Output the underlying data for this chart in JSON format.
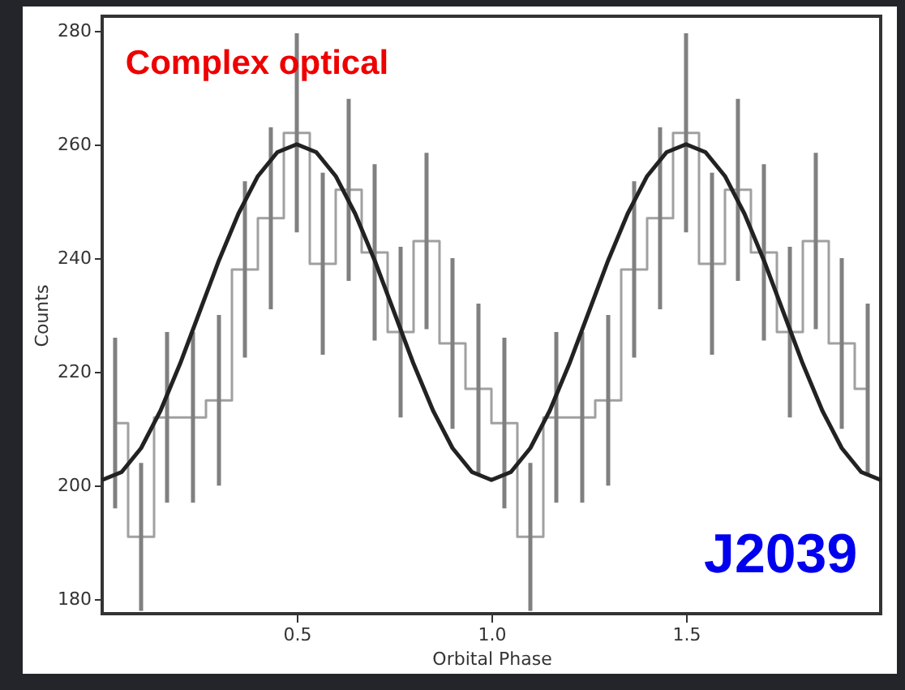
{
  "chart_data": {
    "type": "step",
    "xlabel": "Orbital Phase",
    "ylabel": "Counts",
    "annotations": [
      "Complex optical",
      "J2039"
    ],
    "xlim": [
      0,
      2
    ],
    "ylim": [
      177.5,
      282.5
    ],
    "xticks": [
      0.5,
      {
        "value": 1,
        "label": "1.0"
      },
      1.5
    ],
    "yticks": [
      180,
      200,
      220,
      240,
      260,
      280
    ],
    "grid": false,
    "series": [
      {
        "color": "#a0a0a0",
        "marker": "none",
        "x": [
          0.0333,
          0.1,
          0.1667,
          0.2333,
          0.3,
          0.3667,
          0.4333,
          0.5,
          0.5667,
          0.6333,
          0.7,
          0.7667,
          0.8333,
          0.9,
          0.9667,
          1.0333,
          1.1,
          1.1667,
          1.2333,
          1.3,
          1.3667,
          1.4333,
          1.5,
          1.5667,
          1.6333,
          1.7,
          1.7667,
          1.8333,
          1.9,
          1.9667
        ],
        "values": [
          211,
          191,
          212,
          212,
          215,
          238,
          247,
          262,
          239,
          252,
          241,
          227,
          243,
          225,
          217,
          211,
          191,
          212,
          212,
          215,
          238,
          247,
          262,
          239,
          252,
          241,
          227,
          243,
          225,
          217
        ],
        "errors": [
          15,
          13,
          15,
          15,
          15,
          15.5,
          16,
          17.5,
          16,
          16,
          15.5,
          15,
          15.5,
          15,
          15,
          15,
          13,
          15,
          15,
          15,
          15.5,
          16,
          17.5,
          16,
          16,
          15.5,
          15,
          15.5,
          15,
          15
        ]
      },
      {
        "type": "line",
        "color": "#222222",
        "line_style": "solid",
        "marker": "none",
        "x": [
          0,
          0.05,
          0.1,
          0.15,
          0.2,
          0.25,
          0.3,
          0.35,
          0.4,
          0.45,
          0.5,
          0.55,
          0.6,
          0.65,
          0.7,
          0.75,
          0.8,
          0.85,
          0.9,
          0.95,
          1,
          1.05,
          1.1,
          1.15,
          1.2,
          1.25,
          1.3,
          1.35,
          1.4,
          1.45,
          1.5,
          1.55,
          1.6,
          1.65,
          1.7,
          1.75,
          1.8,
          1.85,
          1.9,
          1.95,
          2
        ],
        "values": [
          201,
          202.4,
          206.6,
          213.2,
          221.4,
          230.5,
          239.6,
          247.8,
          254.4,
          258.6,
          260,
          258.6,
          254.4,
          247.8,
          239.6,
          230.5,
          221.4,
          213.2,
          206.6,
          202.4,
          201,
          202.4,
          206.6,
          213.2,
          221.4,
          230.5,
          239.6,
          247.8,
          254.4,
          258.6,
          260,
          258.6,
          254.4,
          247.8,
          239.6,
          230.5,
          221.4,
          213.2,
          206.6,
          202.4,
          201
        ]
      }
    ]
  }
}
